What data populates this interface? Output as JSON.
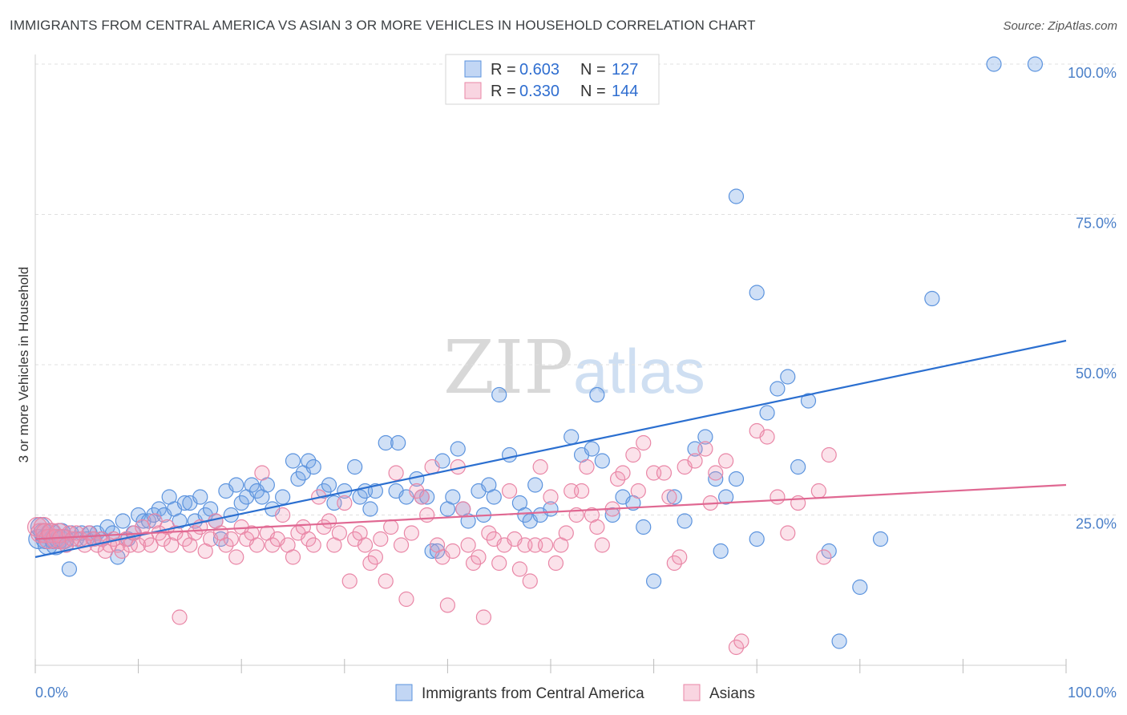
{
  "title": "IMMIGRANTS FROM CENTRAL AMERICA VS ASIAN 3 OR MORE VEHICLES IN HOUSEHOLD CORRELATION CHART",
  "source": "Source: ZipAtlas.com",
  "watermark": {
    "zip": "ZIP",
    "atlas": "atlas"
  },
  "colors": {
    "blue": "#5b93de",
    "blue_fill": "rgba(120,165,230,0.35)",
    "blue_line": "#2b6fd0",
    "pink": "#e986a6",
    "pink_fill": "rgba(240,150,180,0.28)",
    "pink_line": "#e06892",
    "grid": "#e0e0e0",
    "tick": "#4a7fc8"
  },
  "legend": {
    "rows": [
      {
        "r_label": "R =",
        "r_value": "0.603",
        "n_label": "N =",
        "n_value": "127"
      },
      {
        "r_label": "R =",
        "r_value": "0.330",
        "n_label": "N =",
        "n_value": "144"
      }
    ]
  },
  "chart_data": {
    "type": "scatter",
    "title": "IMMIGRANTS FROM CENTRAL AMERICA VS ASIAN 3 OR MORE VEHICLES IN HOUSEHOLD CORRELATION CHART",
    "xlabel": "",
    "ylabel": "3 or more Vehicles in Household",
    "xlim": [
      0,
      100
    ],
    "ylim": [
      0,
      100
    ],
    "x_tick_labels": [
      {
        "value": 0,
        "label": "0.0%"
      },
      {
        "value": 100,
        "label": "100.0%"
      }
    ],
    "y_tick_labels": [
      {
        "value": 25,
        "label": "25.0%"
      },
      {
        "value": 50,
        "label": "50.0%"
      },
      {
        "value": 75,
        "label": "75.0%"
      },
      {
        "value": 100,
        "label": "100.0%"
      }
    ],
    "grid": true,
    "series": [
      {
        "name": "Immigrants from Central America",
        "color": "blue",
        "R": 0.603,
        "N": 127,
        "trend": {
          "x0": 0,
          "y0": 18,
          "x1": 100,
          "y1": 54
        },
        "points": [
          [
            0.3,
            21
          ],
          [
            0.5,
            23
          ],
          [
            0.8,
            22
          ],
          [
            1,
            21
          ],
          [
            1.2,
            20
          ],
          [
            1.5,
            22
          ],
          [
            1.8,
            21
          ],
          [
            2,
            20
          ],
          [
            2.3,
            21
          ],
          [
            2.5,
            22
          ],
          [
            2.8,
            21
          ],
          [
            3,
            20
          ],
          [
            3.3,
            16
          ],
          [
            3.5,
            22
          ],
          [
            4,
            21
          ],
          [
            4.5,
            22
          ],
          [
            5,
            21
          ],
          [
            5.3,
            22
          ],
          [
            5.7,
            21
          ],
          [
            6,
            22
          ],
          [
            6.5,
            21
          ],
          [
            7,
            23
          ],
          [
            7.5,
            22
          ],
          [
            8,
            18
          ],
          [
            8.5,
            24
          ],
          [
            9,
            21
          ],
          [
            9.5,
            22
          ],
          [
            10,
            25
          ],
          [
            10.5,
            24
          ],
          [
            11,
            24
          ],
          [
            11.5,
            25
          ],
          [
            12,
            26
          ],
          [
            12.5,
            25
          ],
          [
            13,
            28
          ],
          [
            13.5,
            26
          ],
          [
            14,
            24
          ],
          [
            14.5,
            27
          ],
          [
            15,
            27
          ],
          [
            15.5,
            24
          ],
          [
            16,
            28
          ],
          [
            16.5,
            25
          ],
          [
            17,
            26
          ],
          [
            17.5,
            24
          ],
          [
            18,
            21
          ],
          [
            18.5,
            29
          ],
          [
            19,
            25
          ],
          [
            19.5,
            30
          ],
          [
            20,
            27
          ],
          [
            20.5,
            28
          ],
          [
            21,
            30
          ],
          [
            21.5,
            29
          ],
          [
            22,
            28
          ],
          [
            22.5,
            30
          ],
          [
            23,
            26
          ],
          [
            24,
            28
          ],
          [
            25,
            34
          ],
          [
            25.5,
            31
          ],
          [
            26,
            32
          ],
          [
            26.5,
            34
          ],
          [
            27,
            33
          ],
          [
            28,
            29
          ],
          [
            28.5,
            30
          ],
          [
            29,
            27
          ],
          [
            30,
            29
          ],
          [
            31,
            33
          ],
          [
            31.5,
            28
          ],
          [
            32,
            29
          ],
          [
            32.5,
            26
          ],
          [
            33,
            29
          ],
          [
            34,
            37
          ],
          [
            35,
            29
          ],
          [
            35.2,
            37
          ],
          [
            36,
            28
          ],
          [
            37,
            31
          ],
          [
            37.5,
            28
          ],
          [
            38,
            28
          ],
          [
            38.5,
            19
          ],
          [
            39,
            19
          ],
          [
            39.5,
            34
          ],
          [
            40,
            26
          ],
          [
            40.5,
            28
          ],
          [
            41,
            36
          ],
          [
            41.5,
            26
          ],
          [
            42,
            24
          ],
          [
            43,
            29
          ],
          [
            43.5,
            25
          ],
          [
            44,
            30
          ],
          [
            44.5,
            28
          ],
          [
            45,
            45
          ],
          [
            46,
            35
          ],
          [
            47,
            27
          ],
          [
            47.5,
            25
          ],
          [
            48,
            24
          ],
          [
            48.5,
            30
          ],
          [
            49,
            25
          ],
          [
            50,
            26
          ],
          [
            52,
            38
          ],
          [
            53,
            35
          ],
          [
            54,
            36
          ],
          [
            54.5,
            45
          ],
          [
            55,
            34
          ],
          [
            56,
            25
          ],
          [
            57,
            28
          ],
          [
            58,
            27
          ],
          [
            59,
            23
          ],
          [
            60,
            14
          ],
          [
            62,
            28
          ],
          [
            63,
            24
          ],
          [
            64,
            36
          ],
          [
            65,
            38
          ],
          [
            66,
            31
          ],
          [
            66.5,
            19
          ],
          [
            67,
            28
          ],
          [
            68,
            31
          ],
          [
            70,
            21
          ],
          [
            71,
            42
          ],
          [
            72,
            46
          ],
          [
            73,
            48
          ],
          [
            74,
            33
          ],
          [
            75,
            44
          ],
          [
            77,
            19
          ],
          [
            78,
            4
          ],
          [
            80,
            13
          ],
          [
            82,
            21
          ],
          [
            87,
            61
          ],
          [
            93,
            100
          ],
          [
            97,
            100
          ],
          [
            68,
            78
          ],
          [
            70,
            62
          ]
        ]
      },
      {
        "name": "Asians",
        "color": "pink",
        "R": 0.33,
        "N": 144,
        "trend": {
          "x0": 0,
          "y0": 21,
          "x1": 100,
          "y1": 30
        },
        "points": [
          [
            0.2,
            23
          ],
          [
            0.5,
            22
          ],
          [
            0.8,
            23
          ],
          [
            1,
            22
          ],
          [
            1.3,
            21
          ],
          [
            1.6,
            22
          ],
          [
            2,
            21
          ],
          [
            2.3,
            22
          ],
          [
            2.6,
            21
          ],
          [
            3,
            20
          ],
          [
            3.3,
            22
          ],
          [
            3.6,
            21
          ],
          [
            4,
            22
          ],
          [
            4.4,
            21
          ],
          [
            4.8,
            20
          ],
          [
            5.2,
            22
          ],
          [
            5.6,
            21
          ],
          [
            6,
            20
          ],
          [
            6.4,
            21
          ],
          [
            6.8,
            19
          ],
          [
            7.2,
            20
          ],
          [
            7.6,
            21
          ],
          [
            8,
            20
          ],
          [
            8.4,
            19
          ],
          [
            8.8,
            21
          ],
          [
            9.2,
            20
          ],
          [
            9.6,
            22
          ],
          [
            10,
            20
          ],
          [
            10.4,
            23
          ],
          [
            10.8,
            21
          ],
          [
            11.2,
            20
          ],
          [
            11.6,
            24
          ],
          [
            12,
            22
          ],
          [
            12.4,
            21
          ],
          [
            12.8,
            23
          ],
          [
            13.2,
            20
          ],
          [
            13.6,
            22
          ],
          [
            14,
            8
          ],
          [
            14.5,
            21
          ],
          [
            15,
            20
          ],
          [
            15.5,
            22
          ],
          [
            16,
            23
          ],
          [
            16.5,
            19
          ],
          [
            17,
            21
          ],
          [
            17.5,
            24
          ],
          [
            18,
            22
          ],
          [
            18.5,
            20
          ],
          [
            19,
            21
          ],
          [
            19.5,
            18
          ],
          [
            20,
            23
          ],
          [
            20.5,
            21
          ],
          [
            21,
            22
          ],
          [
            21.5,
            20
          ],
          [
            22,
            32
          ],
          [
            22.5,
            22
          ],
          [
            23,
            20
          ],
          [
            23.5,
            21
          ],
          [
            24,
            25
          ],
          [
            24.5,
            20
          ],
          [
            25,
            18
          ],
          [
            25.5,
            22
          ],
          [
            26,
            23
          ],
          [
            26.5,
            21
          ],
          [
            27,
            20
          ],
          [
            27.5,
            28
          ],
          [
            28,
            23
          ],
          [
            28.5,
            24
          ],
          [
            29,
            20
          ],
          [
            29.5,
            22
          ],
          [
            30,
            27
          ],
          [
            30.5,
            14
          ],
          [
            31,
            21
          ],
          [
            31.5,
            22
          ],
          [
            32,
            20
          ],
          [
            32.5,
            17
          ],
          [
            33,
            18
          ],
          [
            33.5,
            21
          ],
          [
            34,
            14
          ],
          [
            34.5,
            23
          ],
          [
            35,
            32
          ],
          [
            35.5,
            20
          ],
          [
            36,
            11
          ],
          [
            36.5,
            22
          ],
          [
            37,
            29
          ],
          [
            37.5,
            28
          ],
          [
            38,
            25
          ],
          [
            38.5,
            33
          ],
          [
            39,
            20
          ],
          [
            39.5,
            18
          ],
          [
            40,
            10
          ],
          [
            40.5,
            19
          ],
          [
            41,
            33
          ],
          [
            41.5,
            26
          ],
          [
            42,
            20
          ],
          [
            42.5,
            17
          ],
          [
            43,
            18
          ],
          [
            43.5,
            8
          ],
          [
            44,
            22
          ],
          [
            44.5,
            21
          ],
          [
            45,
            17
          ],
          [
            45.5,
            20
          ],
          [
            46,
            29
          ],
          [
            46.5,
            21
          ],
          [
            47,
            16
          ],
          [
            47.5,
            20
          ],
          [
            48,
            14
          ],
          [
            48.5,
            20
          ],
          [
            49,
            33
          ],
          [
            49.5,
            20
          ],
          [
            50,
            28
          ],
          [
            50.5,
            17
          ],
          [
            51,
            20
          ],
          [
            51.5,
            22
          ],
          [
            52,
            29
          ],
          [
            52.5,
            25
          ],
          [
            53,
            29
          ],
          [
            53.5,
            33
          ],
          [
            54,
            25
          ],
          [
            54.5,
            23
          ],
          [
            55,
            20
          ],
          [
            56,
            26
          ],
          [
            56.5,
            31
          ],
          [
            57,
            32
          ],
          [
            58,
            35
          ],
          [
            58.5,
            29
          ],
          [
            59,
            37
          ],
          [
            60,
            32
          ],
          [
            61,
            32
          ],
          [
            61.5,
            28
          ],
          [
            62,
            17
          ],
          [
            62.5,
            18
          ],
          [
            63,
            33
          ],
          [
            64,
            34
          ],
          [
            65,
            36
          ],
          [
            65.5,
            27
          ],
          [
            66,
            32
          ],
          [
            67,
            34
          ],
          [
            68,
            3
          ],
          [
            68.5,
            4
          ],
          [
            70,
            39
          ],
          [
            71,
            38
          ],
          [
            72,
            28
          ],
          [
            73,
            22
          ],
          [
            74,
            27
          ],
          [
            76,
            29
          ],
          [
            76.5,
            18
          ],
          [
            77,
            35
          ]
        ]
      }
    ]
  },
  "bottom_legend": [
    {
      "label": "Immigrants from Central America"
    },
    {
      "label": "Asians"
    }
  ]
}
